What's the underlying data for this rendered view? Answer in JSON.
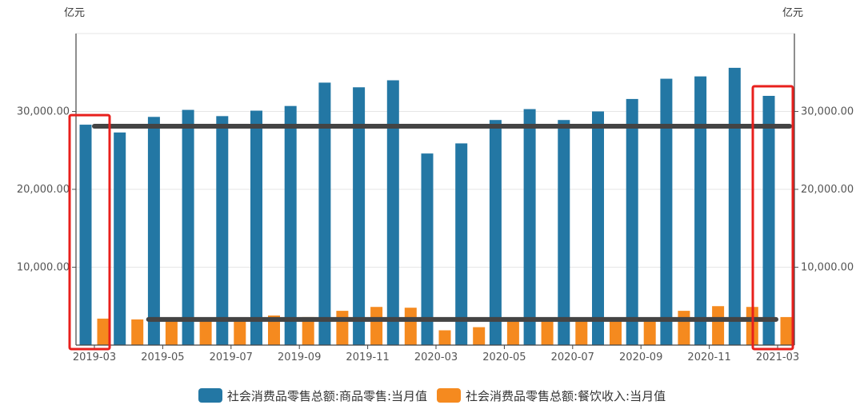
{
  "chart_data": {
    "type": "bar",
    "y_unit_left": "亿元",
    "y_unit_right": "亿元",
    "ylim": [
      0,
      40000
    ],
    "y_ticks": [
      10000,
      20000,
      30000
    ],
    "y_tick_labels": [
      "10,000.00",
      "20,000.00",
      "30,000.00"
    ],
    "grid": true,
    "legend_position": "bottom-center",
    "categories": [
      "2019-03",
      "2019-04",
      "2019-05",
      "2019-06",
      "2019-07",
      "2019-08",
      "2019-09",
      "2019-10",
      "2019-11",
      "2019-12",
      "2020-03",
      "2020-04",
      "2020-05",
      "2020-06",
      "2020-07",
      "2020-08",
      "2020-09",
      "2020-10",
      "2020-11",
      "2020-12",
      "2021-03"
    ],
    "x_tick_labels": [
      "2019-03",
      "2019-05",
      "2019-07",
      "2019-09",
      "2019-11",
      "2020-03",
      "2020-05",
      "2020-07",
      "2020-09",
      "2020-11",
      "2021-03"
    ],
    "series": [
      {
        "name": "社会消费品零售总额:商品零售:当月值",
        "color": "#2377a4",
        "values": [
          28300,
          27300,
          29300,
          30200,
          29400,
          30100,
          30700,
          33700,
          33100,
          34000,
          24600,
          25900,
          28900,
          30300,
          28900,
          30000,
          31600,
          34200,
          34500,
          35600,
          32000
        ]
      },
      {
        "name": "社会消费品零售总额:餐饮收入:当月值",
        "color": "#f58a1f",
        "values": [
          3400,
          3300,
          3500,
          3400,
          3300,
          3800,
          3600,
          4400,
          4900,
          4800,
          1900,
          2300,
          3100,
          3300,
          3200,
          3300,
          3200,
          4400,
          5000,
          4900,
          3600
        ]
      }
    ],
    "annotations": [
      {
        "type": "horizontal-line",
        "value": 28100,
        "from": "2019-03",
        "to": "2021-03",
        "color": "#444444"
      },
      {
        "type": "horizontal-line",
        "value": 3300,
        "from": "2019-04",
        "to": "2021-03",
        "color": "#444444"
      },
      {
        "type": "highlight-box",
        "category": "2019-03",
        "color": "#e8201d"
      },
      {
        "type": "highlight-box",
        "category": "2021-03",
        "color": "#e8201d"
      }
    ]
  }
}
